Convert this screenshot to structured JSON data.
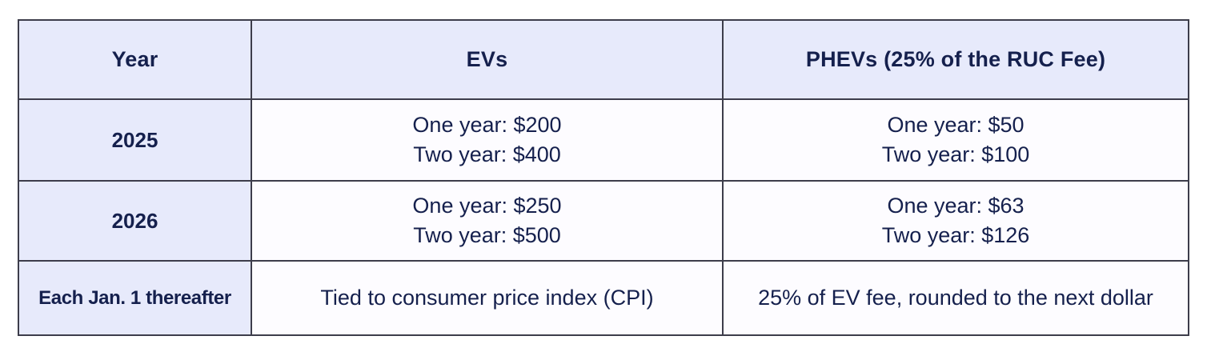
{
  "colors": {
    "page_bg": "#ffffff",
    "header_bg": "#e7eafb",
    "year_column_bg": "#e7eafb",
    "body_cell_bg": "#fdfcff",
    "border": "#3d3d4b",
    "text": "#15204d"
  },
  "chart_data": {
    "type": "table",
    "columns": [
      "Year",
      "EVs",
      "PHEVs (25% of the RUC Fee)"
    ],
    "rows": [
      {
        "year": "2025",
        "evs": [
          "One year: $200",
          "Two year: $400"
        ],
        "phevs": [
          "One year: $50",
          "Two year: $100"
        ]
      },
      {
        "year": "2026",
        "evs": [
          "One year: $250",
          "Two year: $500"
        ],
        "phevs": [
          "One year: $63",
          "Two year: $126"
        ]
      },
      {
        "year": "Each Jan. 1 thereafter",
        "evs": [
          "Tied to consumer price index (CPI)"
        ],
        "phevs": [
          "25% of EV fee, rounded to the next dollar"
        ]
      }
    ]
  }
}
